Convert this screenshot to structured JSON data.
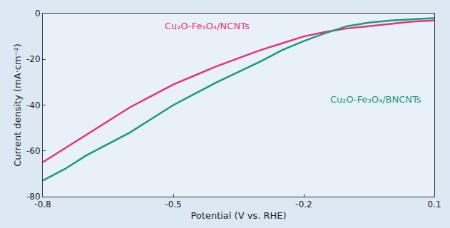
{
  "chart_data": {
    "type": "line",
    "x_label": "Potential (V vs. RHE)",
    "y_label": "Current density (mA·cm⁻²)",
    "xlim": [
      -0.8,
      0.1
    ],
    "xticks": [
      -0.8,
      -0.5,
      -0.2,
      0.1
    ],
    "ylim": [
      -80,
      0
    ],
    "yticks": [
      -80,
      -60,
      -40,
      -20,
      0
    ],
    "grid": false,
    "x": [
      -0.8,
      -0.75,
      -0.7,
      -0.65,
      -0.6,
      -0.55,
      -0.5,
      -0.45,
      -0.4,
      -0.35,
      -0.3,
      -0.25,
      -0.2,
      -0.15,
      -0.1,
      -0.05,
      0,
      0.05,
      0.1
    ],
    "series": [
      {
        "name": "Cu₂O-Fe₃O₄/NCNTs",
        "color": "#e8317a",
        "values": [
          -65,
          -59,
          -53,
          -47,
          -41,
          -36,
          -31,
          -27,
          -23,
          -19.5,
          -16,
          -13,
          -10,
          -8,
          -6.5,
          -5.5,
          -4.5,
          -3.5,
          -3
        ]
      },
      {
        "name": "Cu₂O-Fe₃O₄/BNCNTs",
        "color": "#1a9a78",
        "values": [
          -73,
          -68,
          -62,
          -57,
          -52,
          -46,
          -40,
          -35,
          -30,
          -25.5,
          -21,
          -16,
          -12,
          -8.5,
          -5.5,
          -4,
          -3,
          -2.5,
          -2
        ]
      }
    ]
  }
}
